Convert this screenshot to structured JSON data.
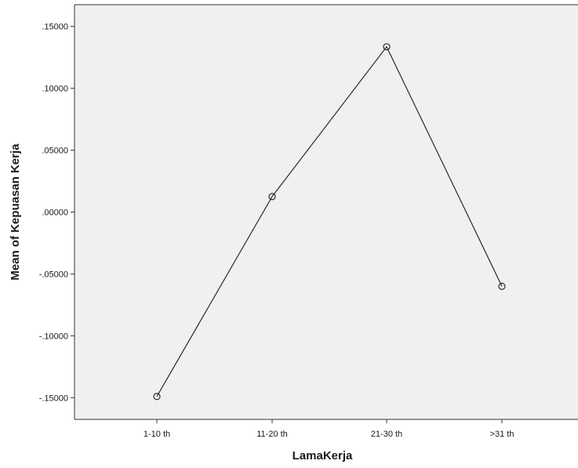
{
  "chart_data": {
    "type": "line",
    "title": "",
    "xlabel": "LamaKerja",
    "ylabel": "Mean of Kepuasan Kerja",
    "categories": [
      "1-10 th",
      "11-20 th",
      "21-30 th",
      ">31 th"
    ],
    "series": [
      {
        "values": [
          -0.149,
          0.0125,
          0.1335,
          -0.06
        ],
        "color": "#2b2b2b",
        "marker": "circle-open"
      }
    ],
    "ylim": [
      -0.1675,
      0.1675
    ],
    "y_ticks": [
      -0.15,
      -0.1,
      -0.05,
      0.0,
      0.05,
      0.1,
      0.15
    ],
    "y_tick_labels": [
      "-.15000",
      "-.10000",
      "-.05000",
      ".00000",
      ".05000",
      ".10000",
      ".15000"
    ],
    "grid": false,
    "legend": "none",
    "plot_background": "#f0f0f0"
  }
}
